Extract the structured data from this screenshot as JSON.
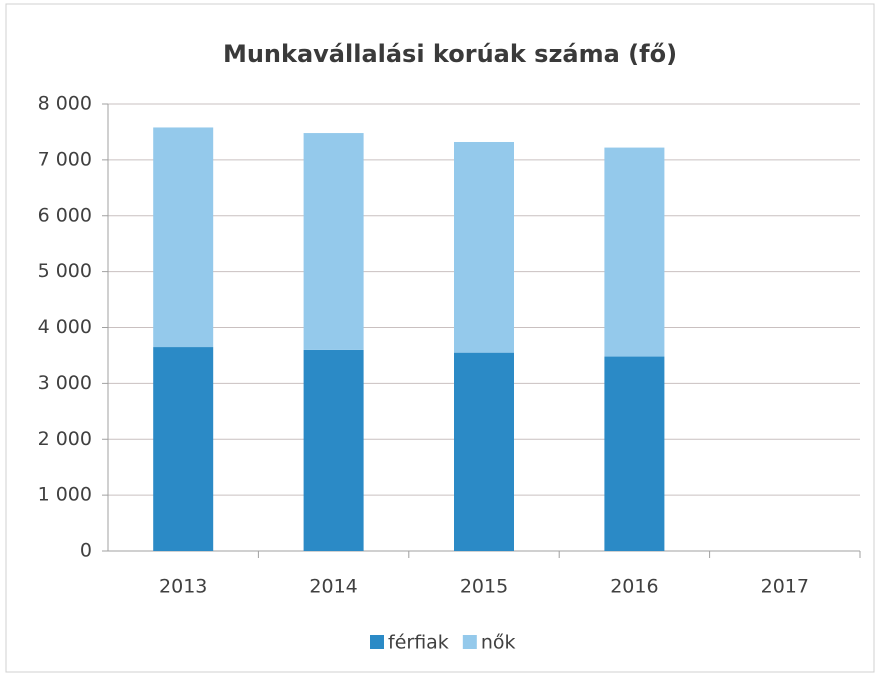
{
  "chart_data": {
    "type": "stacked_bar",
    "title": "Munkavállalási korúak száma (fő)",
    "categories": [
      "2013",
      "2014",
      "2015",
      "2016",
      "2017"
    ],
    "series": [
      {
        "name": "férfiak",
        "color": "#2b8ac6",
        "values": [
          3650,
          3600,
          3550,
          3480,
          null
        ]
      },
      {
        "name": "nők",
        "color": "#94c9eb",
        "values": [
          3930,
          3880,
          3770,
          3740,
          null
        ]
      }
    ],
    "ylim": [
      0,
      8000
    ],
    "yticks": [
      0,
      {
        "value": 1000,
        "label": "1 000"
      },
      {
        "value": 2000,
        "label": "2 000"
      },
      {
        "value": 3000,
        "label": "3 000"
      },
      {
        "value": 4000,
        "label": "4 000"
      },
      {
        "value": 5000,
        "label": "5 000"
      },
      {
        "value": 6000,
        "label": "6 000"
      },
      {
        "value": 7000,
        "label": "7 000"
      },
      {
        "value": 8000,
        "label": "8 000"
      }
    ],
    "grid": true,
    "legend": "bottom"
  }
}
